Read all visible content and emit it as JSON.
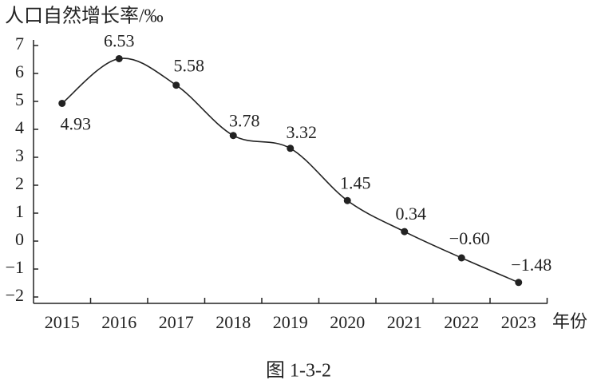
{
  "chart_data": {
    "type": "line",
    "y_axis_label": "人口自然增长率/‰",
    "x_axis_label": "年份",
    "caption": "图 1-3-2",
    "categories": [
      "2015",
      "2016",
      "2017",
      "2018",
      "2019",
      "2020",
      "2021",
      "2022",
      "2023"
    ],
    "values": [
      4.93,
      6.53,
      5.58,
      3.78,
      3.32,
      1.45,
      0.34,
      -0.6,
      -1.48
    ],
    "value_labels": [
      "4.93",
      "6.53",
      "5.58",
      "3.78",
      "3.32",
      "1.45",
      "0.34",
      "−0.60",
      "−1.48"
    ],
    "color": "#222222",
    "smooth": true,
    "ylim": [
      -2,
      7
    ],
    "yticks": [
      {
        "value": -2,
        "label": "−2"
      },
      {
        "value": -1,
        "label": "−1"
      },
      0,
      1,
      2,
      3,
      4,
      5,
      6,
      7
    ],
    "grid": false
  }
}
